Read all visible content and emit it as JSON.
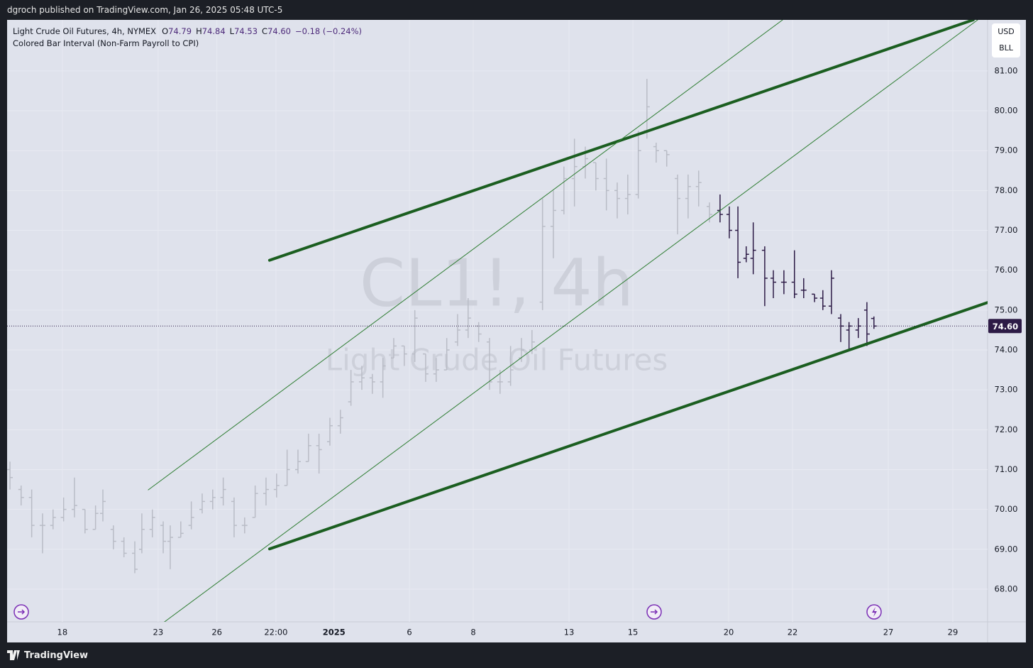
{
  "header": {
    "text": "dgroch published on TradingView.com, Jan 26, 2025 05:48 UTC-5"
  },
  "legend": {
    "symbol": "Light Crude Oil Futures, 4h, NYMEX",
    "ohlc": [
      {
        "key": "O",
        "value": "74.79"
      },
      {
        "key": "H",
        "value": "74.84"
      },
      {
        "key": "L",
        "value": "74.53"
      },
      {
        "key": "C",
        "value": "74.60"
      }
    ],
    "change": "−0.18 (−0.24%)",
    "indicator": "Colored Bar Interval (Non-Farm Payroll to CPI)"
  },
  "currency": [
    "USD",
    "BLL"
  ],
  "watermark": [
    "CL1!, 4h",
    "Light Crude Oil Futures"
  ],
  "footer": {
    "brand": "TradingView"
  },
  "chart_data": {
    "type": "ohlc",
    "xlim": [
      -1.73,
      28.98
    ],
    "ylim": [
      67.18,
      82.28
    ],
    "xticks": [
      {
        "value": 0,
        "label": "18"
      },
      {
        "value": 3,
        "label": "23"
      },
      {
        "value": 4.84,
        "label": "26"
      },
      {
        "value": 6.69,
        "label": "22:00"
      },
      {
        "value": 8.51,
        "label": "2025"
      },
      {
        "value": 10.87,
        "label": "6"
      },
      {
        "value": 12.87,
        "label": "8"
      },
      {
        "value": 15.87,
        "label": "13"
      },
      {
        "value": 17.87,
        "label": "15"
      },
      {
        "value": 20.87,
        "label": "20"
      },
      {
        "value": 22.87,
        "label": "22"
      },
      {
        "value": 25.87,
        "label": "27"
      },
      {
        "value": 27.89,
        "label": "29"
      }
    ],
    "yticks": [
      {
        "value": 68,
        "label": "68.00"
      },
      {
        "value": 69,
        "label": "69.00"
      },
      {
        "value": 70,
        "label": "70.00"
      },
      {
        "value": 71,
        "label": "71.00"
      },
      {
        "value": 72,
        "label": "72.00"
      },
      {
        "value": 73,
        "label": "73.00"
      },
      {
        "value": 74,
        "label": "74.00"
      },
      {
        "value": 75,
        "label": "75.00"
      },
      {
        "value": 76,
        "label": "76.00"
      },
      {
        "value": 77,
        "label": "77.00"
      },
      {
        "value": 78,
        "label": "78.00"
      },
      {
        "value": 79,
        "label": "79.00"
      },
      {
        "value": 80,
        "label": "80.00"
      },
      {
        "value": 81,
        "label": "81.00"
      }
    ],
    "grid": true,
    "series": [
      {
        "color": "#b9bcc6",
        "x": [
          -1.64,
          -1.29,
          -0.96,
          -0.62,
          -0.29,
          0.04,
          0.38,
          0.71,
          1.04,
          1.27,
          1.6,
          1.93,
          2.27,
          2.49,
          2.82,
          3.16,
          3.38,
          3.71,
          4.04,
          4.38,
          4.71,
          5.04,
          5.38,
          5.71,
          6.04,
          6.38,
          6.71,
          7.04,
          7.38,
          7.71,
          8.04,
          8.38,
          8.71,
          9.04,
          9.38,
          9.71,
          10.04,
          10.38,
          10.71,
          11.04,
          11.38,
          11.71,
          12.04,
          12.38,
          12.71,
          13.04,
          13.38,
          13.71,
          14.04,
          14.38,
          14.71,
          15.04,
          15.38,
          15.71,
          16.04,
          16.38,
          16.71,
          17.04,
          17.38,
          17.71,
          18.04,
          18.31,
          18.6,
          18.93,
          19.27,
          19.6,
          19.93,
          20.27
        ],
        "open": [
          71.0,
          70.5,
          70.3,
          69.6,
          69.6,
          69.8,
          70.0,
          70.0,
          69.5,
          69.9,
          69.5,
          69.2,
          68.9,
          69.0,
          69.5,
          69.6,
          69.2,
          69.3,
          69.6,
          70.0,
          70.2,
          70.3,
          70.2,
          69.6,
          69.8,
          70.4,
          70.5,
          70.6,
          71.0,
          71.2,
          71.6,
          71.7,
          72.1,
          72.7,
          73.2,
          73.3,
          73.2,
          73.8,
          74.1,
          73.9,
          73.9,
          73.4,
          73.5,
          74.2,
          74.5,
          74.6,
          74.2,
          73.2,
          73.2,
          73.8,
          74.0,
          75.2,
          77.1,
          77.5,
          78.3,
          78.6,
          78.7,
          78.3,
          78.0,
          77.8,
          77.9,
          79.5,
          79.1,
          79.0,
          78.3,
          77.8,
          78.1,
          77.6
        ],
        "high": [
          71.2,
          70.6,
          70.5,
          69.9,
          70.0,
          70.3,
          70.8,
          70.0,
          70.1,
          70.5,
          69.6,
          69.3,
          69.2,
          69.9,
          70.0,
          69.7,
          69.6,
          69.7,
          70.2,
          70.4,
          70.5,
          70.8,
          70.3,
          69.8,
          70.6,
          70.8,
          70.9,
          71.5,
          71.5,
          71.9,
          71.9,
          72.3,
          72.5,
          73.5,
          73.6,
          73.4,
          73.8,
          74.3,
          74.1,
          75.0,
          73.9,
          73.8,
          74.3,
          74.9,
          75.3,
          74.7,
          74.3,
          73.5,
          74.1,
          74.3,
          74.5,
          77.8,
          78.0,
          78.6,
          79.3,
          79.1,
          78.7,
          78.8,
          78.2,
          78.4,
          79.5,
          80.8,
          79.2,
          79.0,
          78.4,
          78.4,
          78.5,
          77.7
        ],
        "low": [
          70.5,
          70.1,
          69.3,
          68.9,
          69.5,
          69.7,
          69.8,
          69.4,
          69.5,
          69.7,
          69.0,
          68.8,
          68.4,
          68.9,
          69.3,
          68.9,
          68.5,
          69.3,
          69.5,
          69.9,
          70.0,
          70.1,
          69.3,
          69.4,
          69.8,
          70.1,
          70.3,
          70.6,
          70.9,
          71.2,
          70.9,
          71.6,
          71.9,
          72.6,
          73.0,
          72.9,
          72.8,
          73.8,
          73.6,
          73.7,
          73.2,
          73.2,
          73.5,
          74.1,
          74.3,
          74.2,
          73.0,
          72.9,
          73.1,
          73.7,
          73.9,
          75.0,
          76.3,
          77.4,
          77.6,
          78.3,
          78.0,
          77.5,
          77.3,
          77.4,
          77.8,
          79.3,
          78.7,
          78.6,
          76.9,
          77.3,
          77.6,
          77.2
        ],
        "close": [
          70.8,
          70.3,
          69.6,
          69.6,
          69.8,
          70.0,
          70.1,
          69.5,
          69.9,
          70.2,
          69.2,
          68.9,
          68.5,
          69.5,
          69.8,
          69.2,
          69.3,
          69.4,
          69.8,
          70.2,
          70.3,
          70.5,
          69.6,
          69.6,
          70.4,
          70.5,
          70.6,
          71.0,
          71.2,
          71.6,
          71.5,
          72.1,
          72.3,
          73.2,
          73.3,
          73.2,
          73.6,
          74.1,
          73.9,
          74.8,
          73.4,
          73.5,
          74.0,
          74.5,
          74.8,
          74.4,
          73.2,
          73.2,
          73.5,
          74.0,
          74.2,
          77.1,
          77.5,
          78.3,
          78.6,
          78.8,
          78.3,
          78.0,
          77.8,
          77.9,
          79.0,
          80.1,
          79.0,
          78.9,
          77.8,
          78.1,
          78.2,
          77.4
        ]
      },
      {
        "color": "#2d1b46",
        "x": [
          20.6,
          20.89,
          21.16,
          21.42,
          21.64,
          22.0,
          22.27,
          22.6,
          22.93,
          23.22,
          23.56,
          23.82,
          24.09,
          24.38,
          24.64,
          24.93,
          25.2,
          25.42
        ],
        "open": [
          77.5,
          77.4,
          77.0,
          76.3,
          76.3,
          76.5,
          75.8,
          75.7,
          75.7,
          75.5,
          75.4,
          75.3,
          75.1,
          74.8,
          74.5,
          74.5,
          75.0,
          74.79
        ],
        "high": [
          77.9,
          77.6,
          77.6,
          76.6,
          77.2,
          76.6,
          76.0,
          76.0,
          76.5,
          75.8,
          75.4,
          75.5,
          76.0,
          74.9,
          74.7,
          74.8,
          75.2,
          74.84
        ],
        "low": [
          77.2,
          76.8,
          75.8,
          76.2,
          75.9,
          75.1,
          75.3,
          75.4,
          75.3,
          75.3,
          75.2,
          75.0,
          74.9,
          74.2,
          74.0,
          74.3,
          74.1,
          74.53
        ],
        "close": [
          77.4,
          77.0,
          76.2,
          76.4,
          76.5,
          75.8,
          75.7,
          75.7,
          75.4,
          75.5,
          75.3,
          75.1,
          75.8,
          74.6,
          74.6,
          74.6,
          74.4,
          74.6
        ]
      }
    ],
    "trendlines": [
      {
        "color": "#1b5e20",
        "width": 4,
        "x": [
          6.49,
          28.53
        ],
        "y": [
          76.25,
          82.28
        ]
      },
      {
        "color": "#1b5e20",
        "width": 4,
        "x": [
          6.49,
          28.98
        ],
        "y": [
          69.01,
          75.19
        ]
      },
      {
        "color": "#2e7d32",
        "width": 1,
        "x": [
          2.69,
          22.56
        ],
        "y": [
          70.49,
          82.28
        ]
      },
      {
        "color": "#2e7d32",
        "width": 1,
        "x": [
          3.2,
          28.67
        ],
        "y": [
          67.18,
          82.28
        ]
      }
    ],
    "last_price": {
      "value": 74.6,
      "label": "74.60"
    },
    "last_price_color": "#2d1b46"
  }
}
